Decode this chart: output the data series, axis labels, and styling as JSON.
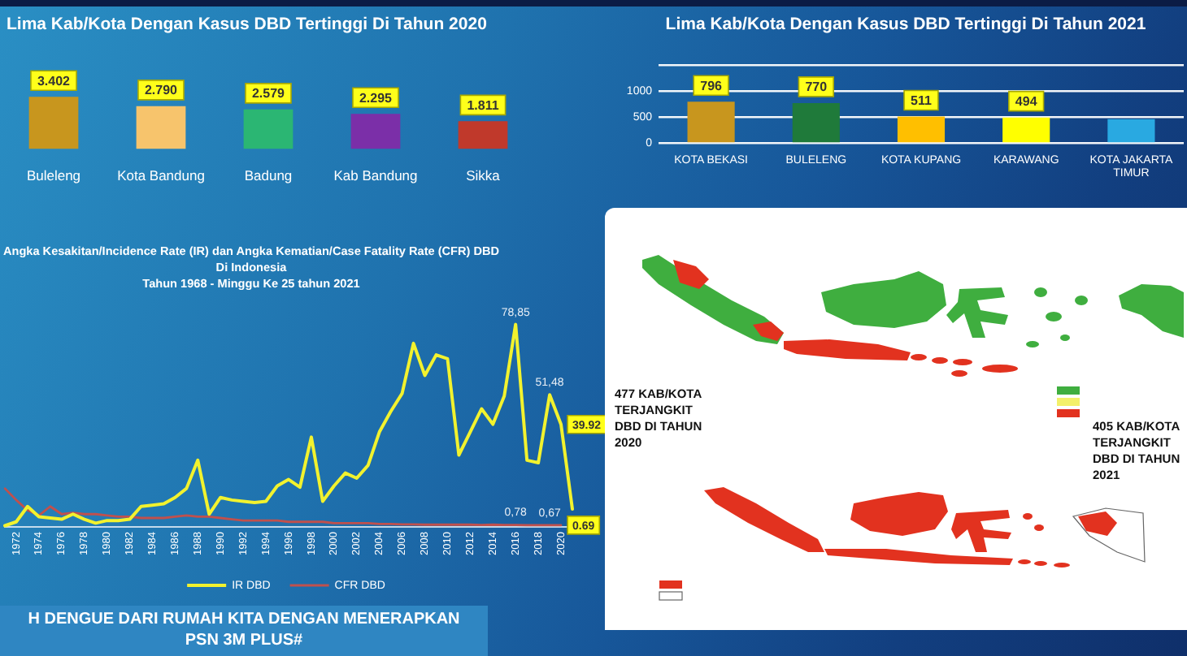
{
  "chart_data": [
    {
      "type": "bar",
      "title": "Lima Kab/Kota Dengan Kasus DBD Tertinggi Di Tahun 2020",
      "categories": [
        "Buleleng",
        "Kota Bandung",
        "Badung",
        "Kab Bandung",
        "Sikka"
      ],
      "values": [
        3402,
        2790,
        2579,
        2295,
        1811
      ],
      "value_labels": [
        "3.402",
        "2.790",
        "2.579",
        "2.295",
        "1.811"
      ],
      "colors": [
        "#c8961e",
        "#f7c46c",
        "#2bb673",
        "#7b2fa8",
        "#c0392b"
      ],
      "ylim": [
        0,
        4000
      ],
      "tick_labels": "x"
    },
    {
      "type": "bar",
      "title": "Lima Kab/Kota Dengan Kasus DBD Tertinggi Di Tahun 2021",
      "categories": [
        "KOTA BEKASI",
        "BULELENG",
        "KOTA KUPANG",
        "KARAWANG",
        "KOTA JAKARTA TIMUR"
      ],
      "values": [
        796,
        770,
        511,
        494,
        460
      ],
      "value_labels": [
        "796",
        "770",
        "511",
        "494",
        null
      ],
      "colors": [
        "#c8961e",
        "#1f7a3a",
        "#ffbf00",
        "#ffff00",
        "#29a9e1"
      ],
      "ylim": [
        0,
        1500
      ],
      "yticks": [
        0,
        500,
        1000,
        {
          "value": 1500,
          "label": null
        }
      ],
      "grid": "y"
    },
    {
      "type": "line",
      "title": "Angka Kesakitan/Incidence Rate (IR) dan Angka Kematian/Case Fatality Rate (CFR) DBD Di Indonesia",
      "subtitle": "Tahun 1968 - Minggu Ke 25 tahun 2021",
      "categories": [
        null,
        "1972",
        null,
        "1974",
        null,
        "1976",
        null,
        "1978",
        null,
        "1980",
        null,
        "1982",
        null,
        "1984",
        null,
        "1986",
        null,
        "1988",
        null,
        "1990",
        null,
        "1992",
        null,
        "1994",
        null,
        "1996",
        null,
        "1998",
        null,
        "2000",
        null,
        "2002",
        null,
        "2004",
        null,
        "2006",
        null,
        "2008",
        null,
        "2010",
        null,
        "2012",
        null,
        "2014",
        null,
        "2016",
        null,
        "2018",
        null,
        "2020",
        null
      ],
      "series": [
        {
          "name": "IR DBD",
          "color": "#f2f22e",
          "values": [
            0.5,
            2,
            8,
            4,
            3.5,
            3,
            5,
            3,
            1.5,
            2.5,
            2.5,
            3,
            8,
            8.5,
            9,
            11.5,
            15,
            26,
            5,
            11.5,
            10.5,
            10,
            9.5,
            10,
            16,
            18.5,
            15.5,
            35,
            10,
            16,
            21,
            19,
            24,
            37,
            45,
            52,
            71.5,
            59,
            67,
            65.5,
            28,
            37,
            46,
            40,
            51,
            78.85,
            26,
            25,
            51.48,
            39.92,
            7
          ],
          "value_labels": [
            null,
            null,
            null,
            null,
            null,
            null,
            null,
            null,
            null,
            null,
            null,
            null,
            null,
            null,
            null,
            null,
            null,
            null,
            null,
            null,
            null,
            null,
            null,
            null,
            null,
            null,
            null,
            null,
            null,
            null,
            null,
            null,
            null,
            null,
            null,
            null,
            null,
            null,
            null,
            null,
            null,
            null,
            null,
            null,
            null,
            "78,85",
            null,
            null,
            "51,48",
            "39.92",
            null
          ]
        },
        {
          "name": "CFR DBD",
          "color": "#c0504d",
          "values": [
            15,
            10.5,
            6.5,
            4.5,
            8,
            5,
            5.5,
            5,
            5,
            4.5,
            4,
            4,
            3.5,
            3.5,
            3.5,
            4,
            4.5,
            4,
            4,
            3.5,
            3,
            2.5,
            2.5,
            2.5,
            2.5,
            2,
            2,
            2,
            2,
            1.5,
            1.5,
            1.5,
            1.5,
            1.2,
            1.2,
            1,
            1,
            0.9,
            0.9,
            0.9,
            0.9,
            0.9,
            0.8,
            0.9,
            0.8,
            0.78,
            0.7,
            0.7,
            0.67,
            0.69,
            null
          ],
          "value_labels": [
            null,
            null,
            null,
            null,
            null,
            null,
            null,
            null,
            null,
            null,
            null,
            null,
            null,
            null,
            null,
            null,
            null,
            null,
            null,
            null,
            null,
            null,
            null,
            null,
            null,
            null,
            null,
            null,
            null,
            null,
            null,
            null,
            null,
            null,
            null,
            null,
            null,
            null,
            null,
            null,
            null,
            null,
            null,
            null,
            null,
            "0,78",
            null,
            null,
            "0,67",
            "0.69",
            null
          ]
        }
      ],
      "tick_labels": "x",
      "legend": "bottom",
      "marker": "none",
      "annotations": [
        "H DENGUE DARI RUMAH KITA DENGAN MENERAPKAN PSN 3M PLUS#"
      ]
    },
    {
      "type": "other",
      "annotations": [
        "477 KAB/KOTA TERJANGKIT DBD DI TAHUN 2020",
        "405 KAB/KOTA TERJANGKIT DBD DI TAHUN 2021"
      ]
    }
  ]
}
